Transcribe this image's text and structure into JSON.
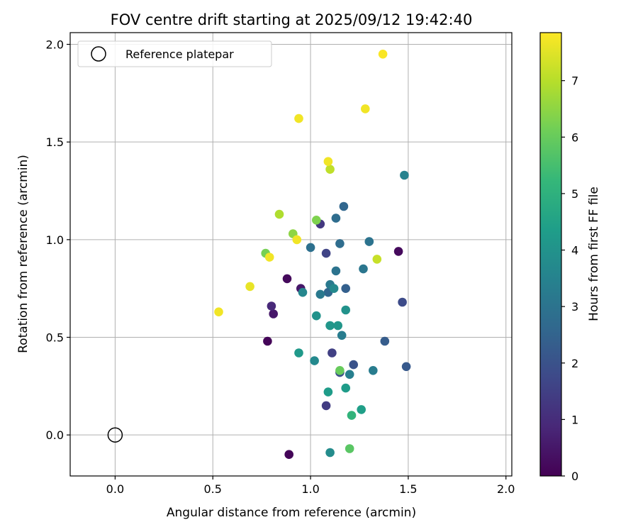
{
  "chart_data": {
    "type": "scatter",
    "title": "FOV centre drift starting at 2025/09/12 19:42:40",
    "xlabel": "Angular distance from reference (arcmin)",
    "ylabel": "Rotation from reference (arcmin)",
    "xlim": [
      -0.23,
      2.03
    ],
    "ylim": [
      -0.21,
      2.06
    ],
    "x_ticks": [
      0.0,
      0.5,
      1.0,
      1.5,
      2.0
    ],
    "x_tick_labels": [
      "0.0",
      "0.5",
      "1.0",
      "1.5",
      "2.0"
    ],
    "y_ticks": [
      0.0,
      0.5,
      1.0,
      1.5,
      2.0
    ],
    "y_tick_labels": [
      "0.0",
      "0.5",
      "1.0",
      "1.5",
      "2.0"
    ],
    "grid": true,
    "legend": {
      "placement": "top-left",
      "entries": [
        "Reference platepar"
      ]
    },
    "reference_point": {
      "x": 0.0,
      "y": 0.0,
      "label": "Reference platepar"
    },
    "colorbar": {
      "label": "Hours from first FF file",
      "range": [
        0,
        7.85
      ],
      "ticks": [
        0,
        1,
        2,
        3,
        4,
        5,
        6,
        7
      ],
      "tick_labels": [
        "0",
        "1",
        "2",
        "3",
        "4",
        "5",
        "6",
        "7"
      ],
      "colormap": "viridis"
    },
    "colormap_stops": [
      "#440154",
      "#482878",
      "#3e4989",
      "#31688e",
      "#26828e",
      "#1f9e89",
      "#35b779",
      "#6ece58",
      "#b5de2b",
      "#fde725"
    ],
    "points": [
      {
        "x": 0.89,
        "y": -0.1,
        "c": 0.1
      },
      {
        "x": 0.78,
        "y": 0.48,
        "c": 0.1
      },
      {
        "x": 0.88,
        "y": 0.8,
        "c": 0.2
      },
      {
        "x": 1.45,
        "y": 0.94,
        "c": 0.2
      },
      {
        "x": 0.81,
        "y": 0.62,
        "c": 0.5
      },
      {
        "x": 0.95,
        "y": 0.75,
        "c": 0.5
      },
      {
        "x": 0.8,
        "y": 0.66,
        "c": 0.9
      },
      {
        "x": 1.05,
        "y": 1.08,
        "c": 1.3
      },
      {
        "x": 1.08,
        "y": 0.15,
        "c": 1.4
      },
      {
        "x": 1.11,
        "y": 0.42,
        "c": 1.5
      },
      {
        "x": 1.08,
        "y": 0.93,
        "c": 1.6
      },
      {
        "x": 1.47,
        "y": 0.68,
        "c": 1.8
      },
      {
        "x": 1.15,
        "y": 0.32,
        "c": 1.9
      },
      {
        "x": 1.22,
        "y": 0.36,
        "c": 2.0
      },
      {
        "x": 1.49,
        "y": 0.35,
        "c": 2.2
      },
      {
        "x": 1.38,
        "y": 0.48,
        "c": 2.3
      },
      {
        "x": 1.18,
        "y": 0.75,
        "c": 2.4
      },
      {
        "x": 1.09,
        "y": 0.73,
        "c": 2.6
      },
      {
        "x": 1.17,
        "y": 1.17,
        "c": 2.6
      },
      {
        "x": 1.13,
        "y": 1.11,
        "c": 2.8
      },
      {
        "x": 1.15,
        "y": 0.98,
        "c": 2.8
      },
      {
        "x": 1.0,
        "y": 0.96,
        "c": 2.9
      },
      {
        "x": 1.13,
        "y": 0.84,
        "c": 3.0
      },
      {
        "x": 1.3,
        "y": 0.99,
        "c": 3.0
      },
      {
        "x": 1.27,
        "y": 0.85,
        "c": 3.1
      },
      {
        "x": 1.05,
        "y": 0.72,
        "c": 3.2
      },
      {
        "x": 1.1,
        "y": 0.77,
        "c": 3.2
      },
      {
        "x": 1.16,
        "y": 0.51,
        "c": 3.3
      },
      {
        "x": 1.32,
        "y": 0.33,
        "c": 3.3
      },
      {
        "x": 1.2,
        "y": 0.31,
        "c": 3.4
      },
      {
        "x": 1.48,
        "y": 1.33,
        "c": 3.5
      },
      {
        "x": 0.96,
        "y": 0.73,
        "c": 3.6
      },
      {
        "x": 1.12,
        "y": 0.75,
        "c": 3.7
      },
      {
        "x": 1.02,
        "y": 0.38,
        "c": 3.7
      },
      {
        "x": 1.1,
        "y": -0.09,
        "c": 3.8
      },
      {
        "x": 1.03,
        "y": 0.61,
        "c": 4.0
      },
      {
        "x": 1.18,
        "y": 0.64,
        "c": 4.0
      },
      {
        "x": 1.1,
        "y": 0.56,
        "c": 4.1
      },
      {
        "x": 1.14,
        "y": 0.56,
        "c": 4.1
      },
      {
        "x": 0.94,
        "y": 0.42,
        "c": 4.2
      },
      {
        "x": 1.09,
        "y": 0.22,
        "c": 4.3
      },
      {
        "x": 1.18,
        "y": 0.24,
        "c": 4.3
      },
      {
        "x": 1.26,
        "y": 0.13,
        "c": 4.4
      },
      {
        "x": 1.21,
        "y": 0.1,
        "c": 5.1
      },
      {
        "x": 1.2,
        "y": -0.07,
        "c": 5.8
      },
      {
        "x": 1.15,
        "y": 0.33,
        "c": 6.0
      },
      {
        "x": 0.77,
        "y": 0.93,
        "c": 6.2
      },
      {
        "x": 1.03,
        "y": 1.1,
        "c": 6.3
      },
      {
        "x": 0.91,
        "y": 1.03,
        "c": 6.5
      },
      {
        "x": 0.84,
        "y": 1.13,
        "c": 6.9
      },
      {
        "x": 1.1,
        "y": 1.36,
        "c": 7.1
      },
      {
        "x": 1.34,
        "y": 0.9,
        "c": 7.2
      },
      {
        "x": 0.69,
        "y": 0.76,
        "c": 7.6
      },
      {
        "x": 0.53,
        "y": 0.63,
        "c": 7.7
      },
      {
        "x": 0.79,
        "y": 0.91,
        "c": 7.7
      },
      {
        "x": 0.93,
        "y": 1.0,
        "c": 7.7
      },
      {
        "x": 1.09,
        "y": 1.4,
        "c": 7.7
      },
      {
        "x": 0.94,
        "y": 1.62,
        "c": 7.7
      },
      {
        "x": 1.28,
        "y": 1.67,
        "c": 7.7
      },
      {
        "x": 1.37,
        "y": 1.95,
        "c": 7.8
      }
    ]
  }
}
